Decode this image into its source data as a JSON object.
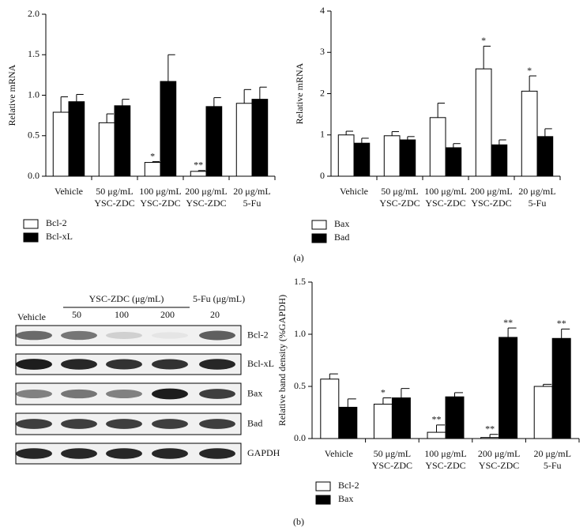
{
  "chart_data": [
    {
      "type": "bar",
      "ylabel": "Relative mRNA",
      "categories": [
        "Vehicle",
        "50 μg/mL\nYSC-ZDC",
        "100 μg/mL\nYSC-ZDC",
        "200 μg/mL\nYSC-ZDC",
        "20 μg/mL\n5-Fu"
      ],
      "series": [
        {
          "name": "Bcl-2",
          "color": "#ffffff",
          "values": [
            0.79,
            0.66,
            0.17,
            0.06,
            0.9
          ],
          "errors": [
            0.19,
            0.11,
            0.01,
            0.01,
            0.17
          ],
          "significance": [
            null,
            null,
            "*",
            "**",
            null
          ]
        },
        {
          "name": "Bcl-xL",
          "color": "#000000",
          "values": [
            0.92,
            0.87,
            1.17,
            0.86,
            0.95
          ],
          "errors": [
            0.09,
            0.08,
            0.33,
            0.11,
            0.15
          ],
          "significance": [
            null,
            null,
            null,
            null,
            null
          ]
        }
      ],
      "ylim": [
        0,
        2
      ],
      "yticks": [
        {
          "value": 0,
          "label": "0.0"
        },
        {
          "value": 0.5,
          "label": "0.5"
        },
        {
          "value": 1,
          "label": "1.0"
        },
        {
          "value": 1.5,
          "label": "1.5"
        },
        {
          "value": 2,
          "label": "2.0"
        }
      ],
      "legend": "below"
    },
    {
      "type": "bar",
      "ylabel": "Relative mRNA",
      "categories": [
        "Vehicle",
        "50 μg/mL\nYSC-ZDC",
        "100 μg/mL\nYSC-ZDC",
        "200 μg/mL\nYSC-ZDC",
        "20 μg/mL\n5-Fu"
      ],
      "series": [
        {
          "name": "Bax",
          "color": "#ffffff",
          "values": [
            1.0,
            0.98,
            1.42,
            2.6,
            2.06
          ],
          "errors": [
            0.09,
            0.1,
            0.35,
            0.55,
            0.37
          ],
          "significance": [
            null,
            null,
            null,
            "*",
            "*"
          ]
        },
        {
          "name": "Bad",
          "color": "#000000",
          "values": [
            0.8,
            0.88,
            0.69,
            0.76,
            0.96
          ],
          "errors": [
            0.12,
            0.08,
            0.1,
            0.12,
            0.19
          ],
          "significance": [
            null,
            null,
            null,
            null,
            null
          ]
        }
      ],
      "ylim": [
        0,
        4
      ],
      "yticks": [
        0,
        1,
        2,
        3,
        4
      ],
      "legend": "below"
    },
    {
      "type": "bar",
      "ylabel": "Relative band density (%GAPDH)",
      "categories": [
        "Vehicle",
        "50 μg/mL\nYSC-ZDC",
        "100 μg/mL\nYSC-ZDC",
        "200 μg/mL\nYSC-ZDC",
        "20 μg/mL\n5-Fu"
      ],
      "series": [
        {
          "name": "Bcl-2",
          "color": "#ffffff",
          "values": [
            0.57,
            0.33,
            0.06,
            0.01,
            0.5
          ],
          "errors": [
            0.05,
            0.06,
            0.07,
            0.03,
            0.02
          ],
          "significance": [
            null,
            "*",
            "**",
            "**",
            null
          ]
        },
        {
          "name": "Bax",
          "color": "#000000",
          "values": [
            0.3,
            0.39,
            0.4,
            0.97,
            0.96
          ],
          "errors": [
            0.08,
            0.09,
            0.04,
            0.09,
            0.09
          ],
          "significance": [
            null,
            null,
            null,
            "**",
            "**"
          ]
        }
      ],
      "ylim": [
        0,
        1.5
      ],
      "yticks": [
        {
          "value": 0,
          "label": "0.0"
        },
        {
          "value": 0.5,
          "label": "0.5"
        },
        {
          "value": 1,
          "label": "1.0"
        },
        {
          "value": 1.5,
          "label": "1.5"
        }
      ],
      "legend": "below"
    }
  ],
  "figure": {
    "panel_a": "(a)",
    "panel_b": "(b)",
    "blot": {
      "vehicle": "Vehicle",
      "group": "YSC-ZDC (μg/mL)",
      "control": "5-Fu (μg/mL)",
      "doses": [
        "50",
        "100",
        "200",
        "20"
      ],
      "rows": [
        "Bcl-2",
        "Bcl-xL",
        "Bax",
        "Bad",
        "GAPDH"
      ]
    }
  }
}
